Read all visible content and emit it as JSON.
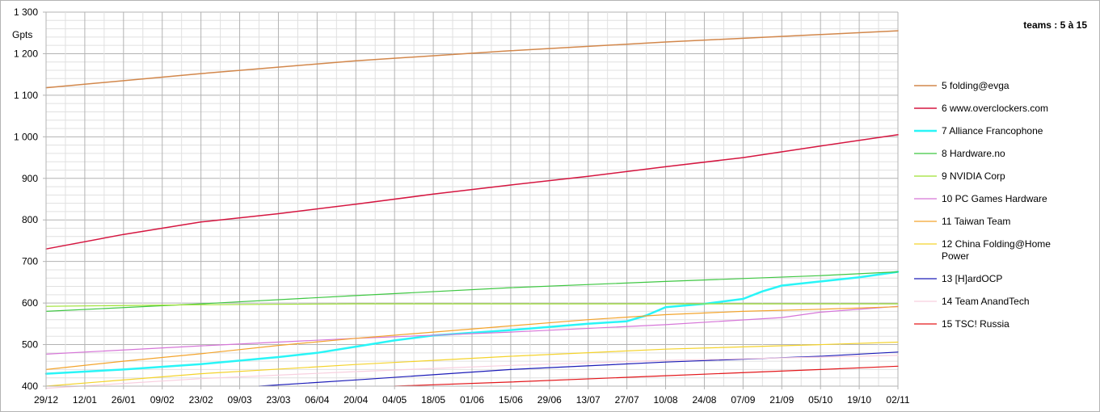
{
  "chart_data": {
    "type": "line",
    "title": "teams : 5 à 15",
    "ylabel": "Gpts",
    "xlabel": "",
    "ylim": [
      400,
      1300
    ],
    "y_ticks": [
      "400",
      "500",
      "600",
      "700",
      "800",
      "900",
      "1 000",
      "1 100",
      "1 200",
      "1 300"
    ],
    "x_ticks": [
      "29/12",
      "12/01",
      "26/01",
      "09/02",
      "23/02",
      "09/03",
      "23/03",
      "06/04",
      "20/04",
      "04/05",
      "18/05",
      "01/06",
      "15/06",
      "29/06",
      "13/07",
      "27/07",
      "10/08",
      "24/08",
      "07/09",
      "21/09",
      "05/10",
      "19/10",
      "02/11"
    ],
    "grid": true,
    "legend_position": "right",
    "series": [
      {
        "name": "5 folding@evga",
        "color": "#d2874b",
        "width": 1.5,
        "x": [
          0,
          4,
          8,
          12,
          16,
          22
        ],
        "values": [
          1118,
          1152,
          1183,
          1207,
          1228,
          1255
        ]
      },
      {
        "name": "6 www.overclockers.com",
        "color": "#d51640",
        "width": 1.5,
        "x": [
          0,
          2,
          4,
          6,
          8,
          10,
          12,
          14,
          16,
          18,
          20,
          22
        ],
        "values": [
          730,
          765,
          795,
          815,
          838,
          862,
          884,
          905,
          928,
          950,
          978,
          1005
        ]
      },
      {
        "name": "7 Alliance Francophone",
        "color": "#29f5f7",
        "width": 2.5,
        "x": [
          0,
          2,
          4,
          6,
          7,
          8,
          9,
          10,
          12,
          14,
          15,
          15.5,
          16,
          17,
          18,
          18.5,
          19,
          20,
          21,
          22
        ],
        "values": [
          430,
          440,
          453,
          470,
          480,
          495,
          510,
          522,
          535,
          550,
          556,
          570,
          590,
          598,
          610,
          628,
          642,
          652,
          662,
          675
        ]
      },
      {
        "name": "8 Hardware.no",
        "color": "#3ec742",
        "width": 1.2,
        "x": [
          0,
          4,
          8,
          12,
          16,
          20,
          22
        ],
        "values": [
          580,
          598,
          618,
          637,
          652,
          666,
          675
        ]
      },
      {
        "name": "9 NVIDIA Corp",
        "color": "#9ee132",
        "width": 1.2,
        "x": [
          0,
          4,
          8,
          12,
          16,
          22
        ],
        "values": [
          592,
          596,
          598,
          598,
          598,
          598
        ]
      },
      {
        "name": "10 PC Games Hardware",
        "color": "#d676d8",
        "width": 1.2,
        "x": [
          0,
          4,
          8,
          12,
          16,
          19,
          20,
          22
        ],
        "values": [
          477,
          497,
          515,
          530,
          548,
          565,
          578,
          592
        ]
      },
      {
        "name": "11 Taiwan Team",
        "color": "#f3a42c",
        "width": 1.2,
        "x": [
          0,
          2,
          4,
          6,
          8,
          10,
          12,
          14,
          16,
          18,
          20,
          22
        ],
        "values": [
          440,
          460,
          478,
          498,
          515,
          530,
          545,
          560,
          572,
          580,
          585,
          591
        ]
      },
      {
        "name": "12 China Folding@Home Power",
        "color": "#f4d32c",
        "width": 1.2,
        "x": [
          0,
          4,
          8,
          12,
          16,
          20,
          22
        ],
        "values": [
          400,
          430,
          452,
          472,
          489,
          500,
          506
        ]
      },
      {
        "name": "13 [H]ardOCP",
        "color": "#1c1cb8",
        "width": 1.2,
        "x": [
          5.5,
          8,
          12,
          16,
          20,
          22
        ],
        "values": [
          400,
          415,
          440,
          458,
          472,
          482
        ]
      },
      {
        "name": "14 Team AnandTech",
        "color": "#f8cfdf",
        "width": 1.2,
        "x": [
          0,
          4,
          8,
          12,
          16,
          20,
          22
        ],
        "values": [
          395,
          418,
          435,
          450,
          462,
          470,
          474
        ]
      },
      {
        "name": "15 TSC! Russia",
        "color": "#e3171b",
        "width": 1.2,
        "x": [
          9,
          12,
          16,
          20,
          22
        ],
        "values": [
          400,
          410,
          425,
          440,
          448
        ]
      }
    ]
  }
}
